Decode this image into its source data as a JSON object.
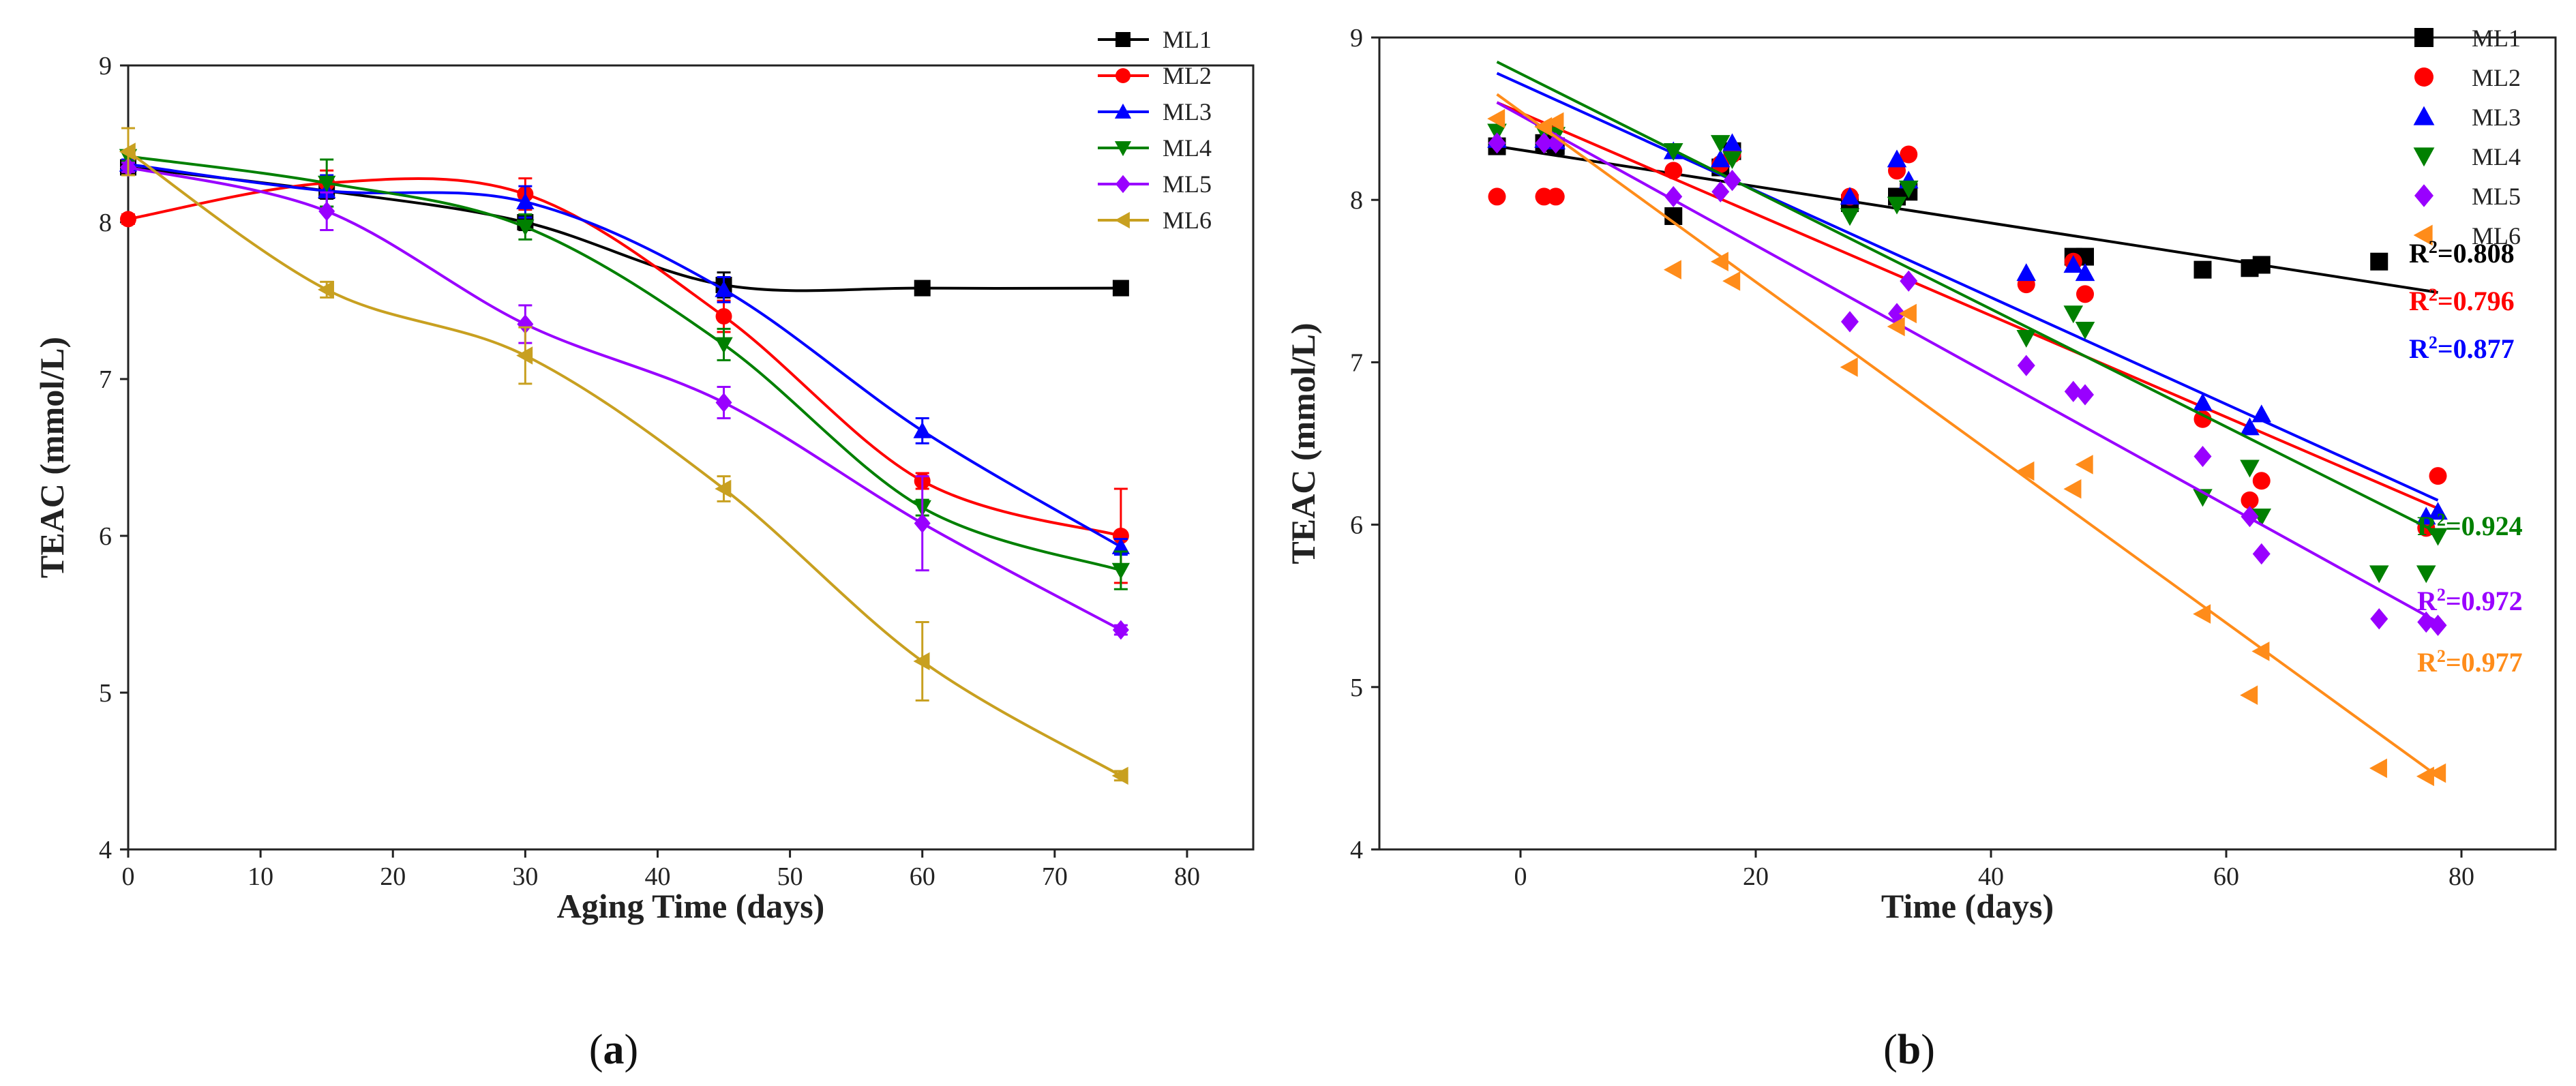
{
  "chart_data": [
    {
      "panel": "(a)",
      "panel_letter": "a",
      "type": "line",
      "title": "",
      "xlabel": "Aging Time (days)",
      "ylabel": "TEAC (mmol/L)",
      "xlim": [
        0,
        85
      ],
      "ylim": [
        4,
        9
      ],
      "xticks": [
        0,
        10,
        20,
        30,
        40,
        50,
        60,
        70,
        80
      ],
      "yticks": [
        4,
        5,
        6,
        7,
        8,
        9
      ],
      "legend_position": "top-right",
      "x": [
        0,
        15,
        30,
        45,
        60,
        75
      ],
      "series": [
        {
          "name": "ML1",
          "marker": "square",
          "color": "#000000",
          "values": [
            8.35,
            8.2,
            8.0,
            7.6,
            7.58,
            7.58
          ],
          "errors": [
            0.03,
            0.05,
            0.05,
            0.08,
            0.03,
            0.03
          ]
        },
        {
          "name": "ML2",
          "marker": "circle",
          "color": "#ff0000",
          "values": [
            8.02,
            8.25,
            8.18,
            7.4,
            6.35,
            6.0
          ],
          "errors": [
            0.03,
            0.08,
            0.1,
            0.1,
            0.05,
            0.3
          ]
        },
        {
          "name": "ML3",
          "marker": "triangle-up",
          "color": "#0000ff",
          "values": [
            8.37,
            8.2,
            8.13,
            7.57,
            6.67,
            5.93
          ],
          "errors": [
            0.03,
            0.1,
            0.1,
            0.08,
            0.08,
            0.05
          ]
        },
        {
          "name": "ML4",
          "marker": "triangle-down",
          "color": "#008000",
          "values": [
            8.42,
            8.25,
            7.97,
            7.22,
            6.18,
            5.78
          ],
          "errors": [
            0.03,
            0.15,
            0.08,
            0.1,
            0.05,
            0.12
          ]
        },
        {
          "name": "ML5",
          "marker": "diamond",
          "color": "#9900ff",
          "values": [
            8.35,
            8.07,
            7.35,
            6.85,
            6.08,
            5.4
          ],
          "errors": [
            0.03,
            0.12,
            0.12,
            0.1,
            0.3,
            0.03
          ]
        },
        {
          "name": "ML6",
          "marker": "triangle-left",
          "color": "#c8a020",
          "values": [
            8.45,
            7.57,
            7.15,
            6.3,
            5.2,
            4.47
          ],
          "errors": [
            0.15,
            0.05,
            0.18,
            0.08,
            0.25,
            0.03
          ]
        }
      ]
    },
    {
      "panel": "(b)",
      "panel_letter": "b",
      "type": "scatter",
      "title": "",
      "xlabel": "Time (days)",
      "ylabel": "TEAC (mmol/L)",
      "xlim": [
        -12,
        88
      ],
      "ylim": [
        4,
        9
      ],
      "xticks": [
        0,
        20,
        40,
        60,
        80
      ],
      "yticks": [
        4,
        5,
        6,
        7,
        8,
        9
      ],
      "legend_position": "top-right",
      "series": [
        {
          "name": "ML1",
          "marker": "square",
          "color": "#000000",
          "r2_label": "R²=0.808",
          "r2_prefix": "R",
          "r2_sup": "2",
          "r2_value": "=0.808",
          "r2": 0.808,
          "points": [
            [
              -2,
              8.33
            ],
            [
              2,
              8.35
            ],
            [
              3,
              8.33
            ],
            [
              13,
              7.9
            ],
            [
              17,
              8.2
            ],
            [
              18,
              8.3
            ],
            [
              28,
              7.98
            ],
            [
              32,
              8.02
            ],
            [
              33,
              8.05
            ],
            [
              47,
              7.65
            ],
            [
              48,
              7.65
            ],
            [
              58,
              7.57
            ],
            [
              62,
              7.58
            ],
            [
              63,
              7.6
            ],
            [
              73,
              7.62
            ]
          ],
          "fit": {
            "x": [
              -2,
              78
            ],
            "y": [
              8.33,
              7.43
            ]
          }
        },
        {
          "name": "ML2",
          "marker": "circle",
          "color": "#ff0000",
          "r2_label": "R²=0.796",
          "r2_prefix": "R",
          "r2_sup": "2",
          "r2_value": "=0.796",
          "r2": 0.796,
          "points": [
            [
              -2,
              8.02
            ],
            [
              2,
              8.02
            ],
            [
              3,
              8.02
            ],
            [
              13,
              8.18
            ],
            [
              17,
              8.22
            ],
            [
              18,
              8.28
            ],
            [
              28,
              8.02
            ],
            [
              32,
              8.18
            ],
            [
              33,
              8.28
            ],
            [
              43,
              7.48
            ],
            [
              47,
              7.62
            ],
            [
              48,
              7.42
            ],
            [
              58,
              6.65
            ],
            [
              62,
              6.15
            ],
            [
              63,
              6.27
            ],
            [
              77,
              5.98
            ],
            [
              78,
              6.3
            ]
          ],
          "fit": {
            "x": [
              -2,
              78
            ],
            "y": [
              8.6,
              6.1
            ]
          }
        },
        {
          "name": "ML3",
          "marker": "triangle-up",
          "color": "#0000ff",
          "r2_label": "R²=0.877",
          "r2_prefix": "R",
          "r2_sup": "2",
          "r2_value": "=0.877",
          "r2": 0.877,
          "points": [
            [
              -2,
              8.37
            ],
            [
              2,
              8.37
            ],
            [
              3,
              8.36
            ],
            [
              13,
              8.3
            ],
            [
              17,
              8.25
            ],
            [
              18,
              8.35
            ],
            [
              28,
              8.02
            ],
            [
              32,
              8.25
            ],
            [
              33,
              8.12
            ],
            [
              43,
              7.55
            ],
            [
              47,
              7.6
            ],
            [
              48,
              7.55
            ],
            [
              58,
              6.75
            ],
            [
              62,
              6.6
            ],
            [
              63,
              6.68
            ],
            [
              77,
              6.05
            ],
            [
              78,
              6.08
            ]
          ],
          "fit": {
            "x": [
              -2,
              78
            ],
            "y": [
              8.78,
              6.15
            ]
          }
        },
        {
          "name": "ML4",
          "marker": "triangle-down",
          "color": "#008000",
          "r2_label": "R²=0.924",
          "r2_prefix": "R",
          "r2_sup": "2",
          "r2_value": "=0.924",
          "r2": 0.924,
          "points": [
            [
              -2,
              8.42
            ],
            [
              2,
              8.42
            ],
            [
              3,
              8.4
            ],
            [
              13,
              8.3
            ],
            [
              17,
              8.35
            ],
            [
              18,
              8.25
            ],
            [
              28,
              7.9
            ],
            [
              32,
              7.97
            ],
            [
              33,
              8.07
            ],
            [
              43,
              7.15
            ],
            [
              47,
              7.3
            ],
            [
              48,
              7.2
            ],
            [
              58,
              6.17
            ],
            [
              62,
              6.35
            ],
            [
              63,
              6.05
            ],
            [
              73,
              5.7
            ],
            [
              77,
              5.7
            ],
            [
              78,
              5.93
            ]
          ],
          "fit": {
            "x": [
              -2,
              78
            ],
            "y": [
              8.85,
              5.95
            ]
          }
        },
        {
          "name": "ML5",
          "marker": "diamond",
          "color": "#9900ff",
          "r2_label": "R²=0.972",
          "r2_prefix": "R",
          "r2_sup": "2",
          "r2_value": "=0.972",
          "r2": 0.972,
          "points": [
            [
              -2,
              8.35
            ],
            [
              2,
              8.35
            ],
            [
              3,
              8.35
            ],
            [
              13,
              8.02
            ],
            [
              17,
              8.05
            ],
            [
              18,
              8.12
            ],
            [
              28,
              7.25
            ],
            [
              32,
              7.3
            ],
            [
              33,
              7.5
            ],
            [
              43,
              6.98
            ],
            [
              47,
              6.82
            ],
            [
              48,
              6.8
            ],
            [
              58,
              6.42
            ],
            [
              62,
              6.05
            ],
            [
              63,
              5.82
            ],
            [
              73,
              5.42
            ],
            [
              77,
              5.4
            ],
            [
              78,
              5.38
            ]
          ],
          "fit": {
            "x": [
              -2,
              78
            ],
            "y": [
              8.6,
              5.4
            ]
          }
        },
        {
          "name": "ML6",
          "marker": "triangle-left",
          "color": "#ff8c1a",
          "r2_label": "R²=0.977",
          "r2_prefix": "R",
          "r2_sup": "2",
          "r2_value": "=0.977",
          "r2": 0.977,
          "points": [
            [
              -2,
              8.5
            ],
            [
              2,
              8.45
            ],
            [
              3,
              8.48
            ],
            [
              13,
              7.57
            ],
            [
              17,
              7.62
            ],
            [
              18,
              7.5
            ],
            [
              28,
              6.97
            ],
            [
              32,
              7.22
            ],
            [
              33,
              7.3
            ],
            [
              43,
              6.33
            ],
            [
              47,
              6.22
            ],
            [
              48,
              6.37
            ],
            [
              58,
              5.45
            ],
            [
              62,
              4.95
            ],
            [
              63,
              5.22
            ],
            [
              73,
              4.5
            ],
            [
              77,
              4.45
            ],
            [
              78,
              4.47
            ]
          ],
          "fit": {
            "x": [
              -2,
              78
            ],
            "y": [
              8.65,
              4.45
            ]
          }
        }
      ]
    }
  ]
}
